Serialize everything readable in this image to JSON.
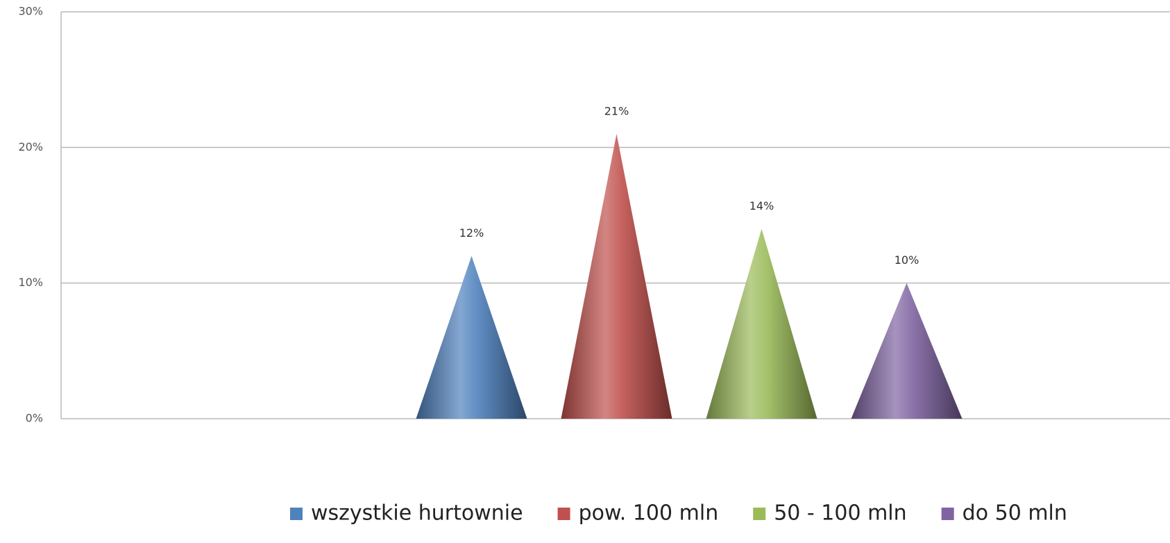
{
  "chart_data": {
    "type": "cone",
    "categories": [
      null
    ],
    "series": [
      {
        "name": "wszystkie hurtownie",
        "color": "#4f81bd",
        "values": [
          12
        ],
        "value_labels": [
          "12%"
        ]
      },
      {
        "name": "pow. 100 mln",
        "color": "#c0504d",
        "values": [
          21
        ],
        "value_labels": [
          "21%"
        ]
      },
      {
        "name": "50 - 100 mln",
        "color": "#9bbb59",
        "values": [
          14
        ],
        "value_labels": [
          "14%"
        ]
      },
      {
        "name": "do 50 mln",
        "color": "#8064a2",
        "values": [
          10
        ],
        "value_labels": [
          "10%"
        ]
      }
    ],
    "ylim": [
      0,
      30
    ],
    "yticks": [
      {
        "value": 0,
        "label": "0%"
      },
      {
        "value": 10,
        "label": "10%"
      },
      {
        "value": 20,
        "label": "20%"
      },
      {
        "value": 30,
        "label": "30%"
      }
    ],
    "grid": true
  }
}
